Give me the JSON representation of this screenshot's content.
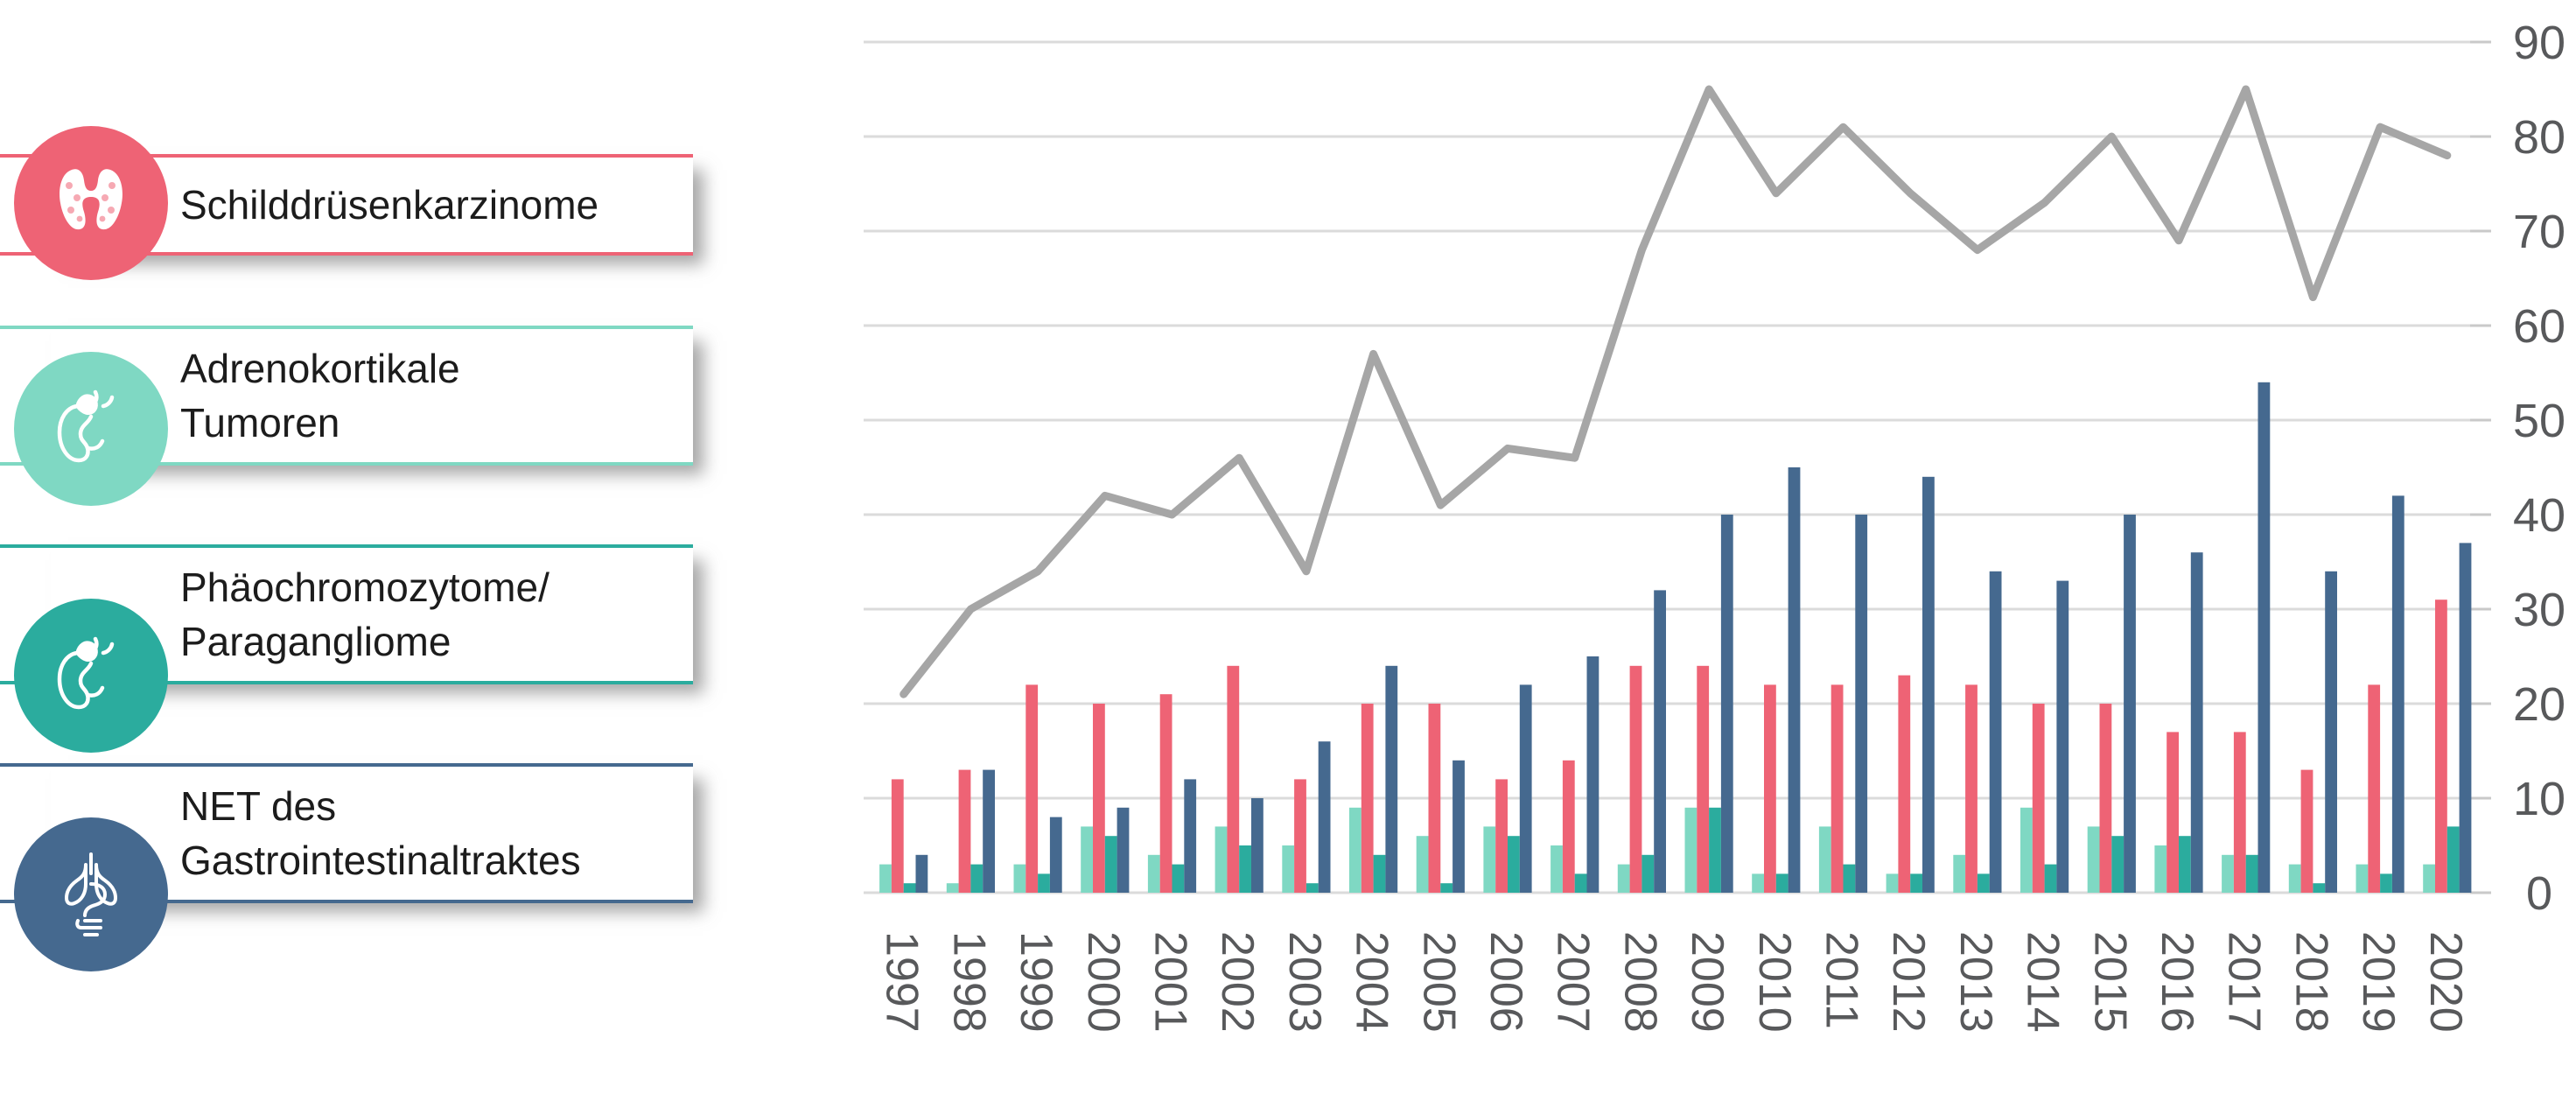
{
  "legend": {
    "items": [
      {
        "icon": "thyroid-icon",
        "color": "#ee6375",
        "lines": [
          "Schilddrüsenkarzinome"
        ]
      },
      {
        "icon": "adrenal-kidney-icon",
        "color": "#7fd8c3",
        "lines": [
          "Adrenokortikale",
          "Tumoren"
        ]
      },
      {
        "icon": "adrenal-kidney-icon",
        "color": "#2bac9e",
        "lines": [
          "Phäochromozytome/",
          "Paragangliome"
        ]
      },
      {
        "icon": "lungs-gi-icon",
        "color": "#45698f",
        "lines": [
          "NET des",
          "Gastrointestinaltraktes"
        ]
      }
    ]
  },
  "chart_data": {
    "type": "bar",
    "title": "",
    "xlabel": "",
    "ylabel": "",
    "ylim": [
      0,
      90
    ],
    "yticks": [
      "0",
      "10",
      "20",
      "30",
      "40",
      "50",
      "60",
      "70",
      "80",
      "90"
    ],
    "grid": true,
    "y_axis_position": "right",
    "categories": [
      "1997",
      "1998",
      "1999",
      "2000",
      "2001",
      "2002",
      "2003",
      "2004",
      "2005",
      "2006",
      "2007",
      "2008",
      "2009",
      "2010",
      "2011",
      "2012",
      "2013",
      "2014",
      "2015",
      "2016",
      "2017",
      "2018",
      "2019",
      "2020"
    ],
    "series": [
      {
        "name": "Adrenokortikale Tumoren",
        "type": "bar",
        "color": "#7fd8c3",
        "values": [
          3,
          1,
          3,
          7,
          4,
          7,
          5,
          9,
          6,
          7,
          5,
          3,
          9,
          2,
          7,
          2,
          4,
          9,
          7,
          5,
          4,
          3,
          3,
          3
        ]
      },
      {
        "name": "Schilddrüsenkarzinome",
        "type": "bar",
        "color": "#ee6375",
        "values": [
          12,
          13,
          22,
          20,
          21,
          24,
          12,
          20,
          20,
          12,
          14,
          24,
          24,
          22,
          22,
          23,
          22,
          20,
          20,
          17,
          17,
          13,
          22,
          31
        ]
      },
      {
        "name": "Phäochromozytome/Paragangliome",
        "type": "bar",
        "color": "#2bac9e",
        "values": [
          1,
          3,
          2,
          6,
          3,
          5,
          1,
          4,
          1,
          6,
          2,
          4,
          9,
          2,
          3,
          2,
          2,
          3,
          6,
          6,
          4,
          1,
          2,
          7
        ]
      },
      {
        "name": "NET des Gastrointestinaltraktes",
        "type": "bar",
        "color": "#45698f",
        "values": [
          4,
          13,
          8,
          9,
          12,
          10,
          16,
          24,
          14,
          22,
          25,
          32,
          40,
          45,
          40,
          44,
          34,
          33,
          40,
          36,
          54,
          34,
          42,
          37
        ]
      },
      {
        "name": "line",
        "type": "line",
        "color": "#a6a6a6",
        "values": [
          21,
          30,
          34,
          42,
          40,
          46,
          34,
          57,
          41,
          47,
          46,
          68,
          85,
          74,
          81,
          74,
          68,
          73,
          80,
          69,
          85,
          63,
          81,
          78
        ]
      }
    ]
  },
  "colors": {
    "gridline": "#dbdbdb",
    "tick": "#c9c9c9",
    "axis_text": "#58595b",
    "background": "#ffffff"
  }
}
